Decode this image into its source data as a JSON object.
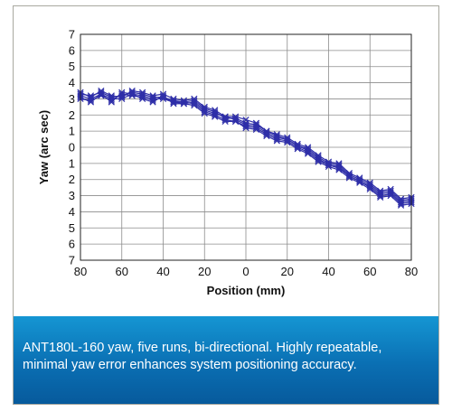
{
  "caption": "ANT180L-160 yaw, five runs, bi-directional. Highly repeatable, minimal yaw error enhances system positioning accuracy.",
  "colors": {
    "series": "#2e2ea8",
    "grid": "#8c8c8c",
    "caption_bg": "#0a78bd"
  },
  "chart_data": {
    "type": "line",
    "title": "",
    "xlabel": "Position (mm)",
    "ylabel": "Yaw (arc sec)",
    "xlim": [
      -80,
      80
    ],
    "ylim": [
      -7,
      7
    ],
    "x_tick_values": [
      -80,
      -60,
      -40,
      -20,
      0,
      20,
      40,
      60,
      80
    ],
    "x_tick_labels": [
      "80",
      "60",
      "40",
      "20",
      "0",
      "20",
      "40",
      "60",
      "80"
    ],
    "y_tick_values": [
      7,
      6,
      5,
      4,
      3,
      2,
      1,
      0,
      -1,
      -2,
      -3,
      -4,
      -5,
      -6,
      -7
    ],
    "y_tick_labels": [
      "7",
      "6",
      "5",
      "4",
      "3",
      "2",
      "1",
      "0",
      "1",
      "2",
      "3",
      "4",
      "5",
      "6",
      "7"
    ],
    "grid": true,
    "marker": "x",
    "x": [
      -80,
      -75,
      -70,
      -65,
      -60,
      -55,
      -50,
      -45,
      -40,
      -35,
      -30,
      -25,
      -20,
      -15,
      -10,
      -5,
      0,
      5,
      10,
      15,
      20,
      25,
      30,
      35,
      40,
      45,
      50,
      55,
      60,
      65,
      70,
      75,
      80
    ],
    "series": [
      {
        "values": [
          3.4,
          3.1,
          3.5,
          3.2,
          3.1,
          3.5,
          3.4,
          3.2,
          3.3,
          3.0,
          2.9,
          3.0,
          2.5,
          2.3,
          1.9,
          1.9,
          1.7,
          1.5,
          1.0,
          0.8,
          0.6,
          0.2,
          0.0,
          -0.5,
          -0.9,
          -1.0,
          -1.6,
          -1.9,
          -2.2,
          -2.7,
          -2.6,
          -3.2,
          -3.1
        ]
      },
      {
        "values": [
          3.3,
          3.2,
          3.4,
          3.1,
          3.2,
          3.4,
          3.3,
          3.1,
          3.1,
          2.9,
          2.8,
          2.9,
          2.4,
          2.2,
          1.8,
          1.8,
          1.5,
          1.4,
          1.0,
          0.7,
          0.5,
          0.1,
          -0.1,
          -0.6,
          -1.0,
          -1.1,
          -1.7,
          -2.0,
          -2.3,
          -2.8,
          -2.7,
          -3.3,
          -3.2
        ]
      },
      {
        "values": [
          3.2,
          3.0,
          3.3,
          3.0,
          3.0,
          3.3,
          3.2,
          3.0,
          3.0,
          2.8,
          2.7,
          2.8,
          2.3,
          2.1,
          1.9,
          1.7,
          1.4,
          1.3,
          0.9,
          0.6,
          0.5,
          0.1,
          -0.2,
          -0.7,
          -1.1,
          -1.2,
          -1.8,
          -2.1,
          -2.4,
          -2.9,
          -2.8,
          -3.4,
          -3.3
        ]
      },
      {
        "values": [
          3.0,
          2.9,
          3.2,
          2.9,
          3.3,
          3.2,
          3.1,
          2.9,
          3.1,
          2.8,
          2.8,
          2.7,
          2.2,
          2.0,
          1.7,
          1.6,
          1.3,
          1.2,
          0.8,
          0.5,
          0.4,
          0.0,
          -0.3,
          -0.8,
          -1.1,
          -1.3,
          -1.8,
          -2.1,
          -2.5,
          -3.0,
          -2.9,
          -3.5,
          -3.4
        ]
      },
      {
        "values": [
          3.1,
          2.8,
          3.3,
          2.8,
          3.4,
          3.3,
          3.0,
          2.8,
          3.2,
          2.7,
          2.7,
          2.6,
          2.1,
          1.9,
          1.6,
          1.6,
          1.2,
          1.1,
          0.7,
          0.4,
          0.3,
          -0.1,
          -0.4,
          -0.9,
          -1.2,
          -1.4,
          -1.9,
          -2.2,
          -2.6,
          -3.1,
          -3.0,
          -3.6,
          -3.5
        ]
      }
    ]
  }
}
